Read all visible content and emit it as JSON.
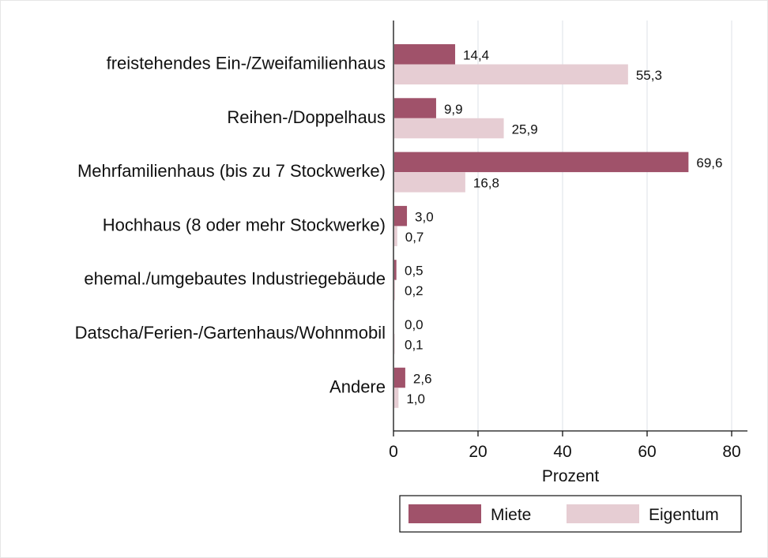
{
  "chart_data": {
    "type": "bar",
    "orientation": "horizontal",
    "categories": [
      "freistehendes Ein-/Zweifamilienhaus",
      "Reihen-/Doppelhaus",
      "Mehrfamilienhaus (bis zu 7 Stockwerke)",
      "Hochhaus (8 oder mehr Stockwerke)",
      "ehemal./umgebautes Industriegebäude",
      "Datscha/Ferien-/Gartenhaus/Wohnmobil",
      "Andere"
    ],
    "series": [
      {
        "name": "Miete",
        "color": "#a0526a",
        "values": [
          14.4,
          9.9,
          69.6,
          3.0,
          0.5,
          0.0,
          2.6
        ],
        "labels": [
          "14,4",
          "9,9",
          "69,6",
          "3,0",
          "0,5",
          "0,0",
          "2,6"
        ]
      },
      {
        "name": "Eigentum",
        "color": "#e6cdd3",
        "values": [
          55.3,
          25.9,
          16.8,
          0.7,
          0.2,
          0.1,
          1.0
        ],
        "labels": [
          "55,3",
          "25,9",
          "16,8",
          "0,7",
          "0,2",
          "0,1",
          "1,0"
        ]
      }
    ],
    "xlabel": "Prozent",
    "xlim": [
      0,
      85
    ],
    "xticks": [
      0,
      20,
      40,
      60,
      80
    ],
    "xtick_labels": [
      "0",
      "20",
      "40",
      "60",
      "80"
    ],
    "grid": true,
    "legend_position": "bottom-right"
  }
}
